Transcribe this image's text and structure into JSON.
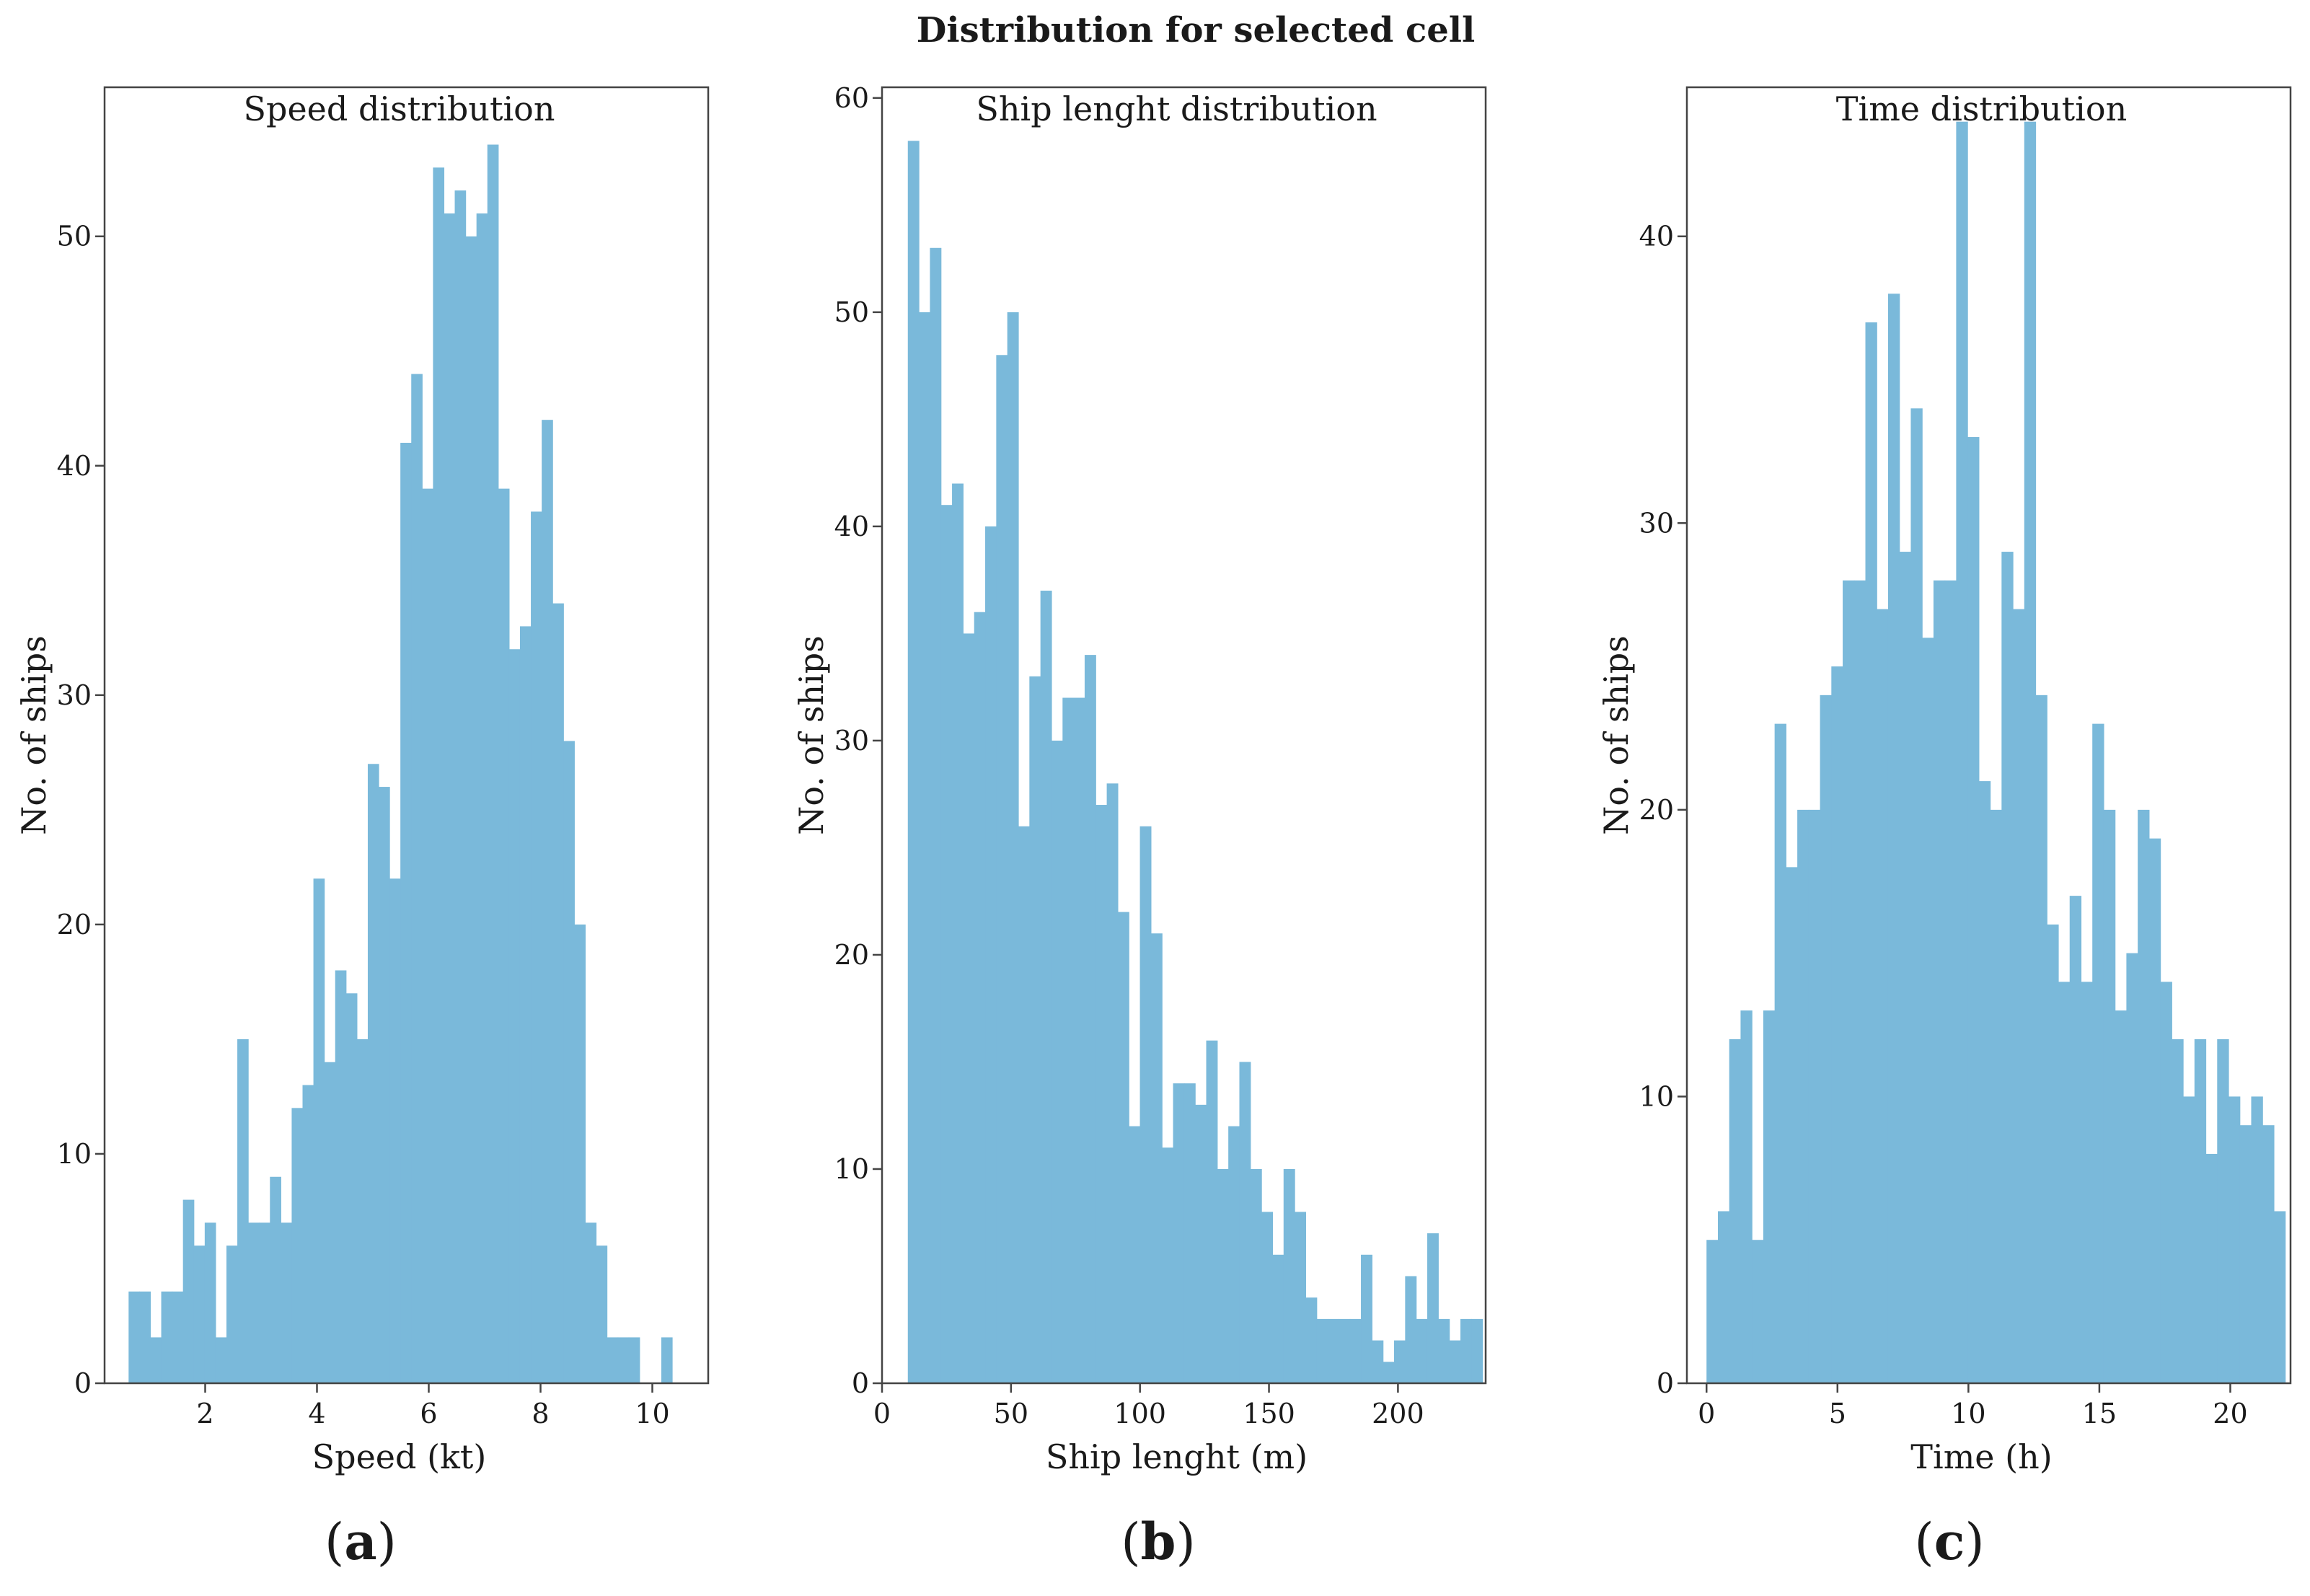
{
  "figure_title": "Distribution for selected cell",
  "colors": {
    "bar": "#7ab9da",
    "frame": "#444444",
    "text": "#1a1a1a"
  },
  "chart_data": [
    {
      "type": "bar",
      "subtitle": "Speed distribution",
      "caption": "(a)",
      "caption_letter": "a",
      "xlabel": "Speed (kt)",
      "ylabel": "No. of ships",
      "xlim": [
        0.2,
        11.0
      ],
      "ylim": [
        0,
        56.5
      ],
      "xticks": [
        2,
        4,
        6,
        8,
        10
      ],
      "yticks": [
        0,
        10,
        20,
        30,
        40,
        50
      ],
      "bin_start": 0.63,
      "bin_width": 0.1945,
      "values": [
        4,
        4,
        2,
        4,
        4,
        8,
        6,
        7,
        2,
        6,
        15,
        7,
        7,
        9,
        7,
        12,
        13,
        22,
        14,
        18,
        17,
        15,
        27,
        26,
        22,
        41,
        44,
        39,
        53,
        51,
        52,
        50,
        51,
        54,
        39,
        32,
        33,
        38,
        42,
        34,
        28,
        20,
        7,
        6,
        2,
        2,
        2,
        0,
        0,
        2
      ]
    },
    {
      "type": "bar",
      "subtitle": "Ship lenght distribution",
      "caption": "(b)",
      "caption_letter": "b",
      "xlabel": "Ship lenght (m)",
      "ylabel": "No. of ships",
      "xlim": [
        0,
        234
      ],
      "ylim": [
        0,
        60.5
      ],
      "xticks": [
        0,
        50,
        100,
        150,
        200
      ],
      "yticks": [
        0,
        10,
        20,
        30,
        40,
        50,
        60
      ],
      "bin_start": 10.0,
      "bin_width": 4.284,
      "values": [
        58,
        50,
        53,
        41,
        42,
        35,
        36,
        40,
        48,
        50,
        26,
        33,
        37,
        30,
        32,
        32,
        34,
        27,
        28,
        22,
        12,
        26,
        21,
        11,
        14,
        14,
        13,
        16,
        10,
        12,
        15,
        10,
        8,
        6,
        10,
        8,
        4,
        3,
        3,
        3,
        3,
        6,
        2,
        1,
        2,
        5,
        3,
        7,
        3,
        2,
        3,
        3
      ]
    },
    {
      "type": "bar",
      "subtitle": "Time distribution",
      "caption": "(c)",
      "caption_letter": "c",
      "xlabel": "Time (h)",
      "ylabel": "No. of ships",
      "xlim": [
        -0.75,
        22.3
      ],
      "ylim": [
        0,
        45.2
      ],
      "xticks": [
        0,
        5,
        10,
        15,
        20
      ],
      "yticks": [
        0,
        10,
        20,
        30,
        40
      ],
      "bin_start": 0.0,
      "bin_width": 0.4333,
      "values": [
        5,
        6,
        12,
        13,
        5,
        13,
        23,
        18,
        20,
        20,
        24,
        25,
        28,
        28,
        37,
        27,
        38,
        29,
        34,
        26,
        28,
        28,
        44,
        33,
        21,
        20,
        29,
        27,
        44,
        24,
        16,
        14,
        17,
        14,
        23,
        20,
        13,
        15,
        20,
        19,
        14,
        12,
        10,
        12,
        8,
        12,
        10,
        9,
        10,
        9,
        6
      ]
    }
  ]
}
